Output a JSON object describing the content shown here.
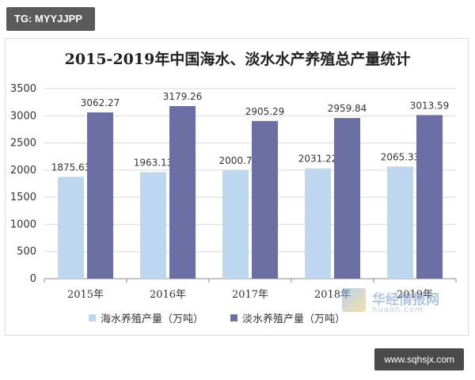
{
  "tg_badge": "TG: MYYJJPP",
  "url_badge": "www.sqhsjx.com",
  "watermark": {
    "name": "华经情报网",
    "sub": "huaon.com"
  },
  "colors": {
    "sea": "#bdd7ee",
    "fresh": "#6b6fa3",
    "axis": "#8c8c8c",
    "grid": "#d9d9d9",
    "text": "#333333"
  },
  "chart_data": {
    "type": "bar",
    "title": "2015-2019年中国海水、淡水水产养殖总产量统计",
    "categories": [
      "2015年",
      "2016年",
      "2017年",
      "2018年",
      "2019年"
    ],
    "series": [
      {
        "name": "海水养殖产量（万吨）",
        "values": [
          1875.63,
          1963.13,
          2000.7,
          2031.22,
          2065.33
        ],
        "labels": [
          "1875.63",
          "1963.13",
          "2000.7",
          "2031.22",
          "2065.33"
        ]
      },
      {
        "name": "淡水养殖产量（万吨）",
        "values": [
          3062.27,
          3179.26,
          2905.29,
          2959.84,
          3013.59
        ],
        "labels": [
          "3062.27",
          "3179.26",
          "2905.29",
          "2959.84",
          "3013.59"
        ]
      }
    ],
    "ylim": [
      0,
      3500
    ],
    "yticks": [
      0,
      500,
      1000,
      1500,
      2000,
      2500,
      3000,
      3500
    ],
    "grid": true,
    "legend": "bottom"
  }
}
